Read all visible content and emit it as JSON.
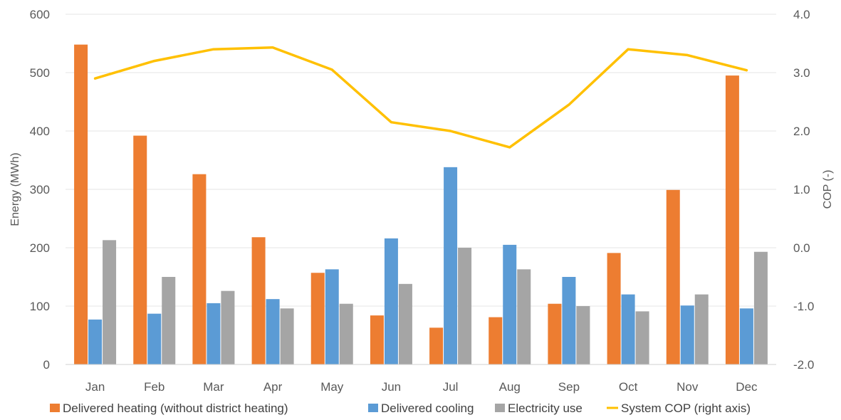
{
  "chart_data": {
    "type": "bar",
    "categories": [
      "Jan",
      "Feb",
      "Mar",
      "Apr",
      "May",
      "Jun",
      "Jul",
      "Aug",
      "Sep",
      "Oct",
      "Nov",
      "Dec"
    ],
    "series": [
      {
        "name": "Delivered heating (without district heating)",
        "type": "bar",
        "axis": "left",
        "color": "#ED7D31",
        "values": [
          548,
          392,
          326,
          218,
          157,
          84,
          63,
          81,
          104,
          191,
          299,
          495
        ]
      },
      {
        "name": "Delivered cooling",
        "type": "bar",
        "axis": "left",
        "color": "#5B9BD5",
        "values": [
          77,
          87,
          105,
          112,
          163,
          216,
          338,
          205,
          150,
          120,
          101,
          96
        ]
      },
      {
        "name": "Electricity use",
        "type": "bar",
        "axis": "left",
        "color": "#A5A5A5",
        "values": [
          213,
          150,
          126,
          96,
          104,
          138,
          200,
          163,
          100,
          91,
          120,
          193
        ]
      },
      {
        "name": "System COP (right axis)",
        "type": "line",
        "axis": "right",
        "color": "#FFC000",
        "values": [
          2.9,
          3.2,
          3.4,
          3.43,
          3.05,
          2.15,
          2.0,
          1.72,
          2.45,
          3.4,
          3.3,
          3.04
        ]
      }
    ],
    "xlabel": "",
    "ylabel": "Energy (MWh)",
    "y2label": "COP (-)",
    "ylim": [
      0,
      600
    ],
    "y2lim": [
      -2.0,
      4.0
    ],
    "yticks": [
      "0",
      "100",
      "200",
      "300",
      "400",
      "500",
      "600"
    ],
    "y2ticks": [
      "-2.0",
      "-1.0",
      "0.0",
      "1.0",
      "2.0",
      "3.0",
      "4.0"
    ],
    "grid": true,
    "legend_position": "bottom"
  }
}
